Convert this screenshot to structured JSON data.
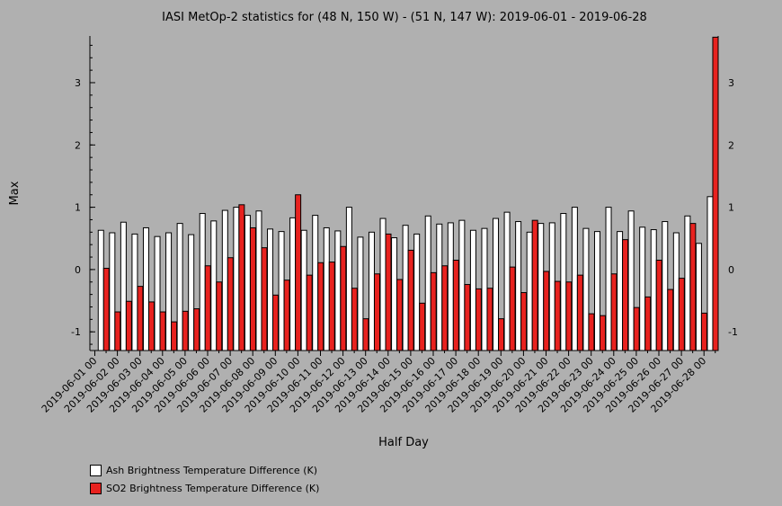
{
  "chart_data": {
    "type": "bar",
    "title": "IASI MetOp-2 statistics for (48 N, 150 W) - (51 N, 147 W): 2019-06-01 - 2019-06-28",
    "xlabel": "Half Day",
    "ylabel": "Max",
    "ylim": [
      -1.3,
      3.75
    ],
    "yticks": [
      -1,
      0,
      1,
      2,
      3
    ],
    "tick_labels": [
      "2019-06-01 00",
      "2019-06-02 00",
      "2019-06-03 00",
      "2019-06-04 00",
      "2019-06-05 00",
      "2019-06-06 00",
      "2019-06-07 00",
      "2019-06-08 00",
      "2019-06-09 00",
      "2019-06-10 00",
      "2019-06-11 00",
      "2019-06-12 00",
      "2019-06-13 00",
      "2019-06-14 00",
      "2019-06-15 00",
      "2019-06-16 00",
      "2019-06-17 00",
      "2019-06-18 00",
      "2019-06-19 00",
      "2019-06-20 00",
      "2019-06-21 00",
      "2019-06-22 00",
      "2019-06-23 00",
      "2019-06-24 00",
      "2019-06-25 00",
      "2019-06-26 00",
      "2019-06-27 00",
      "2019-06-28 00"
    ],
    "series": [
      {
        "name": "Ash Brightness Temperature Difference (K)",
        "color": "#ffffff",
        "values": [
          0.63,
          0.59,
          0.76,
          0.57,
          0.67,
          0.53,
          0.59,
          0.74,
          0.56,
          0.9,
          0.78,
          0.95,
          1.0,
          0.87,
          0.94,
          0.65,
          0.61,
          0.83,
          0.63,
          0.87,
          0.67,
          0.62,
          1.0,
          0.52,
          0.6,
          0.82,
          0.51,
          0.71,
          0.57,
          0.86,
          0.73,
          0.75,
          0.79,
          0.63,
          0.66,
          0.82,
          0.92,
          0.77,
          0.6,
          0.74,
          0.75,
          0.9,
          1.0,
          0.66,
          0.61,
          1.0,
          0.61,
          0.94,
          0.68,
          0.64,
          0.77,
          0.59,
          0.86,
          0.42,
          1.17
        ]
      },
      {
        "name": "SO2 Brightness Temperature Difference (K)",
        "color": "#e8221f",
        "values": [
          0.02,
          -0.68,
          -0.51,
          -0.27,
          -0.52,
          -0.68,
          -0.84,
          -0.67,
          -0.63,
          0.06,
          -0.2,
          0.19,
          1.04,
          0.67,
          0.35,
          -0.41,
          -0.17,
          1.2,
          -0.09,
          0.11,
          0.12,
          0.37,
          -0.3,
          -0.79,
          -0.07,
          0.57,
          -0.16,
          0.31,
          -0.54,
          -0.05,
          0.06,
          0.15,
          -0.24,
          -0.31,
          -0.3,
          -0.79,
          0.04,
          -0.37,
          0.79,
          -0.03,
          -0.19,
          -0.2,
          -0.09,
          -0.71,
          -0.74,
          -0.07,
          0.48,
          -0.61,
          -0.44,
          0.15,
          -0.32,
          -0.14,
          0.74,
          -0.7,
          3.73
        ]
      }
    ],
    "legend_position": "bottom-left"
  }
}
